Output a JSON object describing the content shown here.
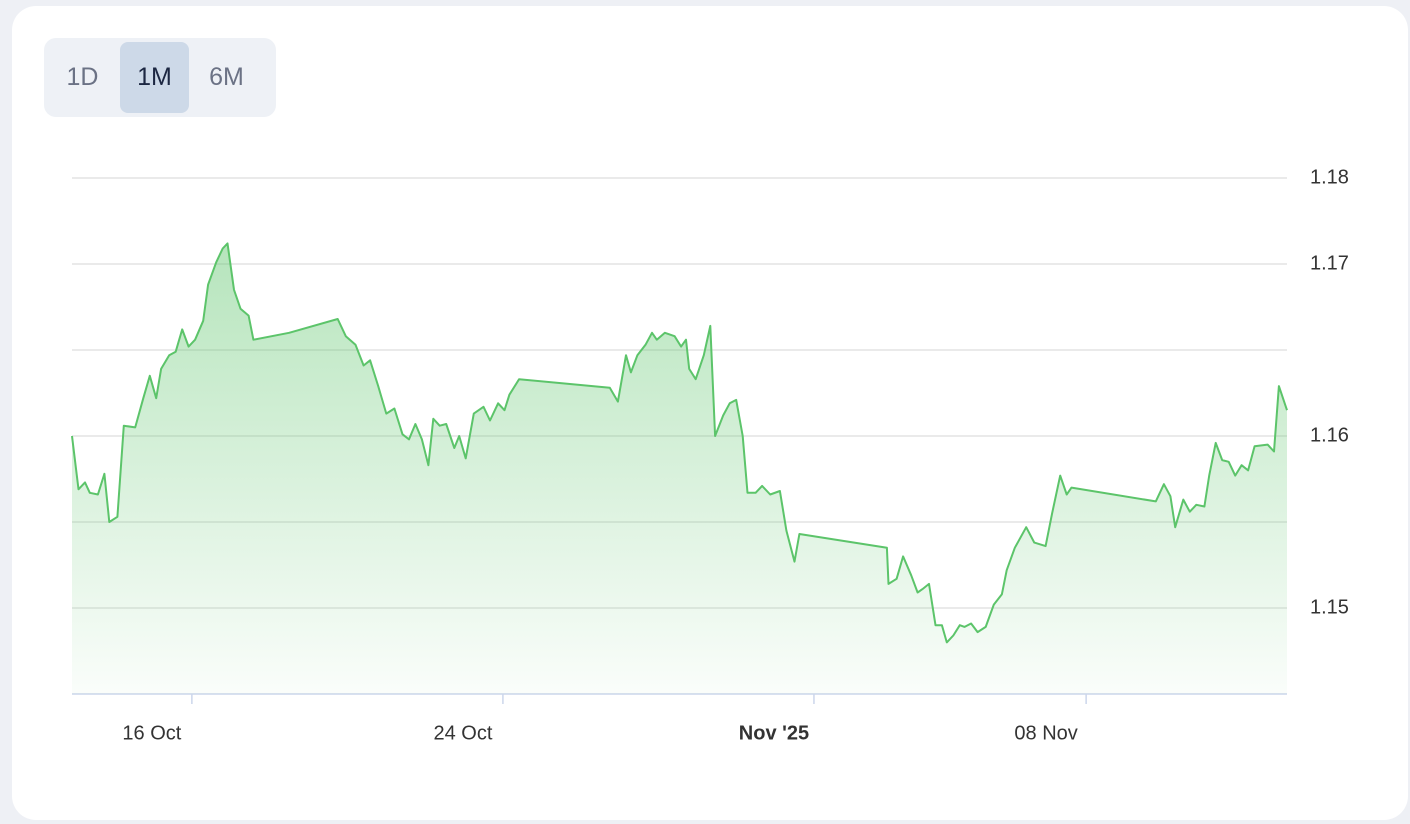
{
  "range_buttons": [
    "1D",
    "1M",
    "6M"
  ],
  "selected_range": 1,
  "chart_data": {
    "type": "area",
    "color": "#5cc46a",
    "x": [
      "2025-10-12T22:00",
      "2025-10-13T02:00",
      "2025-10-13T06:00",
      "2025-10-13T09:00",
      "2025-10-13T14:00",
      "2025-10-13T18:00",
      "2025-10-13T21:00",
      "2025-10-14T02:00",
      "2025-10-14T06:00",
      "2025-10-14T13:00",
      "2025-10-14T18:00",
      "2025-10-14T22:00",
      "2025-10-15T02:00",
      "2025-10-15T05:00",
      "2025-10-15T10:00",
      "2025-10-15T14:00",
      "2025-10-15T18:00",
      "2025-10-15T22:00",
      "2025-10-16T02:00",
      "2025-10-16T07:00",
      "2025-10-16T10:00",
      "2025-10-16T15:00",
      "2025-10-16T19:00",
      "2025-10-16T22:00",
      "2025-10-17T02:00",
      "2025-10-17T06:00",
      "2025-10-17T11:00",
      "2025-10-17T14:00",
      "2025-10-18T12:00",
      "2025-10-19T18:00",
      "2025-10-19T23:00",
      "2025-10-20T05:00",
      "2025-10-20T10:00",
      "2025-10-20T14:00",
      "2025-10-20T19:00",
      "2025-10-21T00:00",
      "2025-10-21T05:00",
      "2025-10-21T10:00",
      "2025-10-21T14:00",
      "2025-10-21T18:00",
      "2025-10-21T22:00",
      "2025-10-22T02:00",
      "2025-10-22T05:00",
      "2025-10-22T09:00",
      "2025-10-22T13:00",
      "2025-10-22T18:00",
      "2025-10-22T21:00",
      "2025-10-23T01:00",
      "2025-10-23T06:00",
      "2025-10-23T12:00",
      "2025-10-23T16:00",
      "2025-10-23T21:00",
      "2025-10-24T01:00",
      "2025-10-24T04:00",
      "2025-10-24T10:00",
      "2025-10-26T18:00",
      "2025-10-26T23:00",
      "2025-10-27T04:00",
      "2025-10-27T07:00",
      "2025-10-27T11:00",
      "2025-10-27T16:00",
      "2025-10-27T20:00",
      "2025-10-27T23:00",
      "2025-10-28T04:00",
      "2025-10-28T10:00",
      "2025-10-28T14:00",
      "2025-10-28T17:00",
      "2025-10-28T19:00",
      "2025-10-28T23:00",
      "2025-10-29T04:00",
      "2025-10-29T08:00",
      "2025-10-29T11:00",
      "2025-10-29T16:00",
      "2025-10-29T20:00",
      "2025-10-30T00:00",
      "2025-10-30T04:00",
      "2025-10-30T07:00",
      "2025-10-30T12:00",
      "2025-10-30T16:00",
      "2025-10-30T21:00",
      "2025-10-31T03:00",
      "2025-10-31T07:00",
      "2025-10-31T12:00",
      "2025-10-31T15:00",
      "2025-11-02T21:00",
      "2025-11-02T22:00",
      "2025-11-03T03:00",
      "2025-11-03T07:00",
      "2025-11-03T12:00",
      "2025-11-03T16:00",
      "2025-11-03T19:00",
      "2025-11-03T23:00",
      "2025-11-04T03:00",
      "2025-11-04T07:00",
      "2025-11-04T10:00",
      "2025-11-04T14:00",
      "2025-11-04T18:00",
      "2025-11-04T21:00",
      "2025-11-05T01:00",
      "2025-11-05T05:00",
      "2025-11-05T10:00",
      "2025-11-05T15:00",
      "2025-11-05T20:00",
      "2025-11-05T23:00",
      "2025-11-06T04:00",
      "2025-11-06T11:00",
      "2025-11-06T16:00",
      "2025-11-06T23:00",
      "2025-11-07T03:00",
      "2025-11-07T08:00",
      "2025-11-07T12:00",
      "2025-11-07T15:00",
      "2025-11-09T19:00",
      "2025-11-10T00:00",
      "2025-11-10T04:00",
      "2025-11-10T07:00",
      "2025-11-10T12:00",
      "2025-11-10T16:00",
      "2025-11-10T20:00",
      "2025-11-11T01:00",
      "2025-11-11T04:00",
      "2025-11-11T08:00",
      "2025-11-11T12:00",
      "2025-11-11T16:00",
      "2025-11-11T20:00",
      "2025-11-12T00:00",
      "2025-11-12T04:00",
      "2025-11-12T08:00",
      "2025-11-12T16:00",
      "2025-11-12T20:00",
      "2025-11-12T23:00",
      "2025-11-13T04:00"
    ],
    "values": [
      1.16,
      1.1569,
      1.1573,
      1.1567,
      1.1566,
      1.1578,
      1.155,
      1.1553,
      1.1606,
      1.1605,
      1.1622,
      1.1635,
      1.1622,
      1.1639,
      1.1647,
      1.1649,
      1.1662,
      1.1652,
      1.1656,
      1.1667,
      1.1688,
      1.1701,
      1.1709,
      1.1712,
      1.1685,
      1.1674,
      1.167,
      1.1656,
      1.166,
      1.1668,
      1.1658,
      1.1653,
      1.1641,
      1.1644,
      1.1629,
      1.1613,
      1.1616,
      1.1601,
      1.1598,
      1.1607,
      1.1598,
      1.1583,
      1.161,
      1.1606,
      1.1607,
      1.1593,
      1.16,
      1.1587,
      1.1613,
      1.1617,
      1.1609,
      1.1619,
      1.1615,
      1.1624,
      1.1633,
      1.1628,
      1.162,
      1.1647,
      1.1637,
      1.1647,
      1.1653,
      1.166,
      1.1656,
      1.166,
      1.1658,
      1.1652,
      1.1656,
      1.1639,
      1.1633,
      1.1647,
      1.1664,
      1.16,
      1.1612,
      1.1619,
      1.1621,
      1.16,
      1.1567,
      1.1567,
      1.1571,
      1.1566,
      1.1568,
      1.1545,
      1.1527,
      1.1543,
      1.1535,
      1.1514,
      1.1517,
      1.153,
      1.1519,
      1.1509,
      1.1511,
      1.1514,
      1.149,
      1.149,
      1.148,
      1.1484,
      1.149,
      1.1489,
      1.1491,
      1.1486,
      1.1489,
      1.1502,
      1.1508,
      1.1522,
      1.1535,
      1.1547,
      1.1538,
      1.1536,
      1.1555,
      1.1577,
      1.1566,
      1.157,
      1.1562,
      1.1572,
      1.1565,
      1.1547,
      1.1563,
      1.1556,
      1.156,
      1.1559,
      1.1577,
      1.1596,
      1.1586,
      1.1585,
      1.1577,
      1.1583,
      1.158,
      1.1594,
      1.1595,
      1.1591,
      1.1629,
      1.1615
    ],
    "xlim": [
      "2025-10-12T22:00",
      "2025-11-13T04:00"
    ],
    "xticks": [
      {
        "value": "2025-10-16T00:00",
        "label": "16 Oct"
      },
      {
        "value": "2025-10-24T00:00",
        "label": "24 Oct"
      },
      {
        "value": "2025-11-01T00:00",
        "label": "Nov '25"
      },
      {
        "value": "2025-11-08T00:00",
        "label": "08 Nov"
      }
    ],
    "ylim": [
      1.145,
      1.175
    ],
    "yticks": [
      {
        "value": 1.175,
        "label": "1.18"
      },
      1.17,
      1.16,
      1.15
    ],
    "ygrid": [
      1.145,
      1.15,
      1.155,
      1.16,
      1.165,
      1.17,
      1.175
    ]
  }
}
